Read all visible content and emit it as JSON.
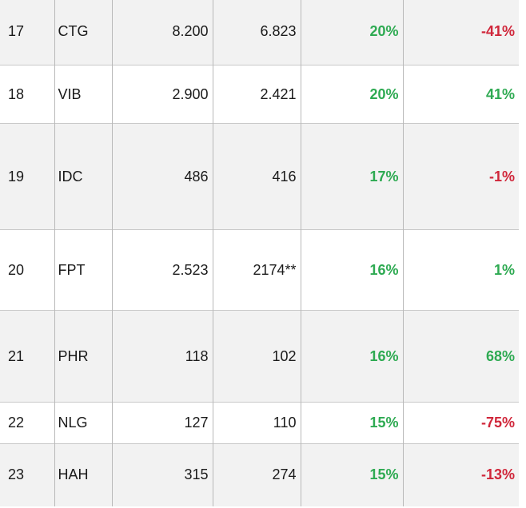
{
  "colors": {
    "positive": "#2eaa52",
    "negative": "#d0263a",
    "row_alt": "#f2f2f2"
  },
  "rows": [
    {
      "no": "17",
      "code": "CTG",
      "v1": "8.200",
      "v2": "6.823",
      "p1": "20%",
      "p1_sign": "pos",
      "p2": "-41%",
      "p2_sign": "neg",
      "shade": "gray"
    },
    {
      "no": "18",
      "code": "VIB",
      "v1": "2.900",
      "v2": "2.421",
      "p1": "20%",
      "p1_sign": "pos",
      "p2": "41%",
      "p2_sign": "pos",
      "shade": "white"
    },
    {
      "no": "19",
      "code": "IDC",
      "v1": "486",
      "v2": "416",
      "p1": "17%",
      "p1_sign": "pos",
      "p2": "-1%",
      "p2_sign": "neg",
      "shade": "gray"
    },
    {
      "no": "20",
      "code": "FPT",
      "v1": "2.523",
      "v2": "2174**",
      "p1": "16%",
      "p1_sign": "pos",
      "p2": "1%",
      "p2_sign": "pos",
      "shade": "white"
    },
    {
      "no": "21",
      "code": "PHR",
      "v1": "118",
      "v2": "102",
      "p1": "16%",
      "p1_sign": "pos",
      "p2": "68%",
      "p2_sign": "pos",
      "shade": "gray"
    },
    {
      "no": "22",
      "code": "NLG",
      "v1": "127",
      "v2": "110",
      "p1": "15%",
      "p1_sign": "pos",
      "p2": "-75%",
      "p2_sign": "neg",
      "shade": "white"
    },
    {
      "no": "23",
      "code": "HAH",
      "v1": "315",
      "v2": "274",
      "p1": "15%",
      "p1_sign": "pos",
      "p2": "-13%",
      "p2_sign": "neg",
      "shade": "gray"
    }
  ]
}
